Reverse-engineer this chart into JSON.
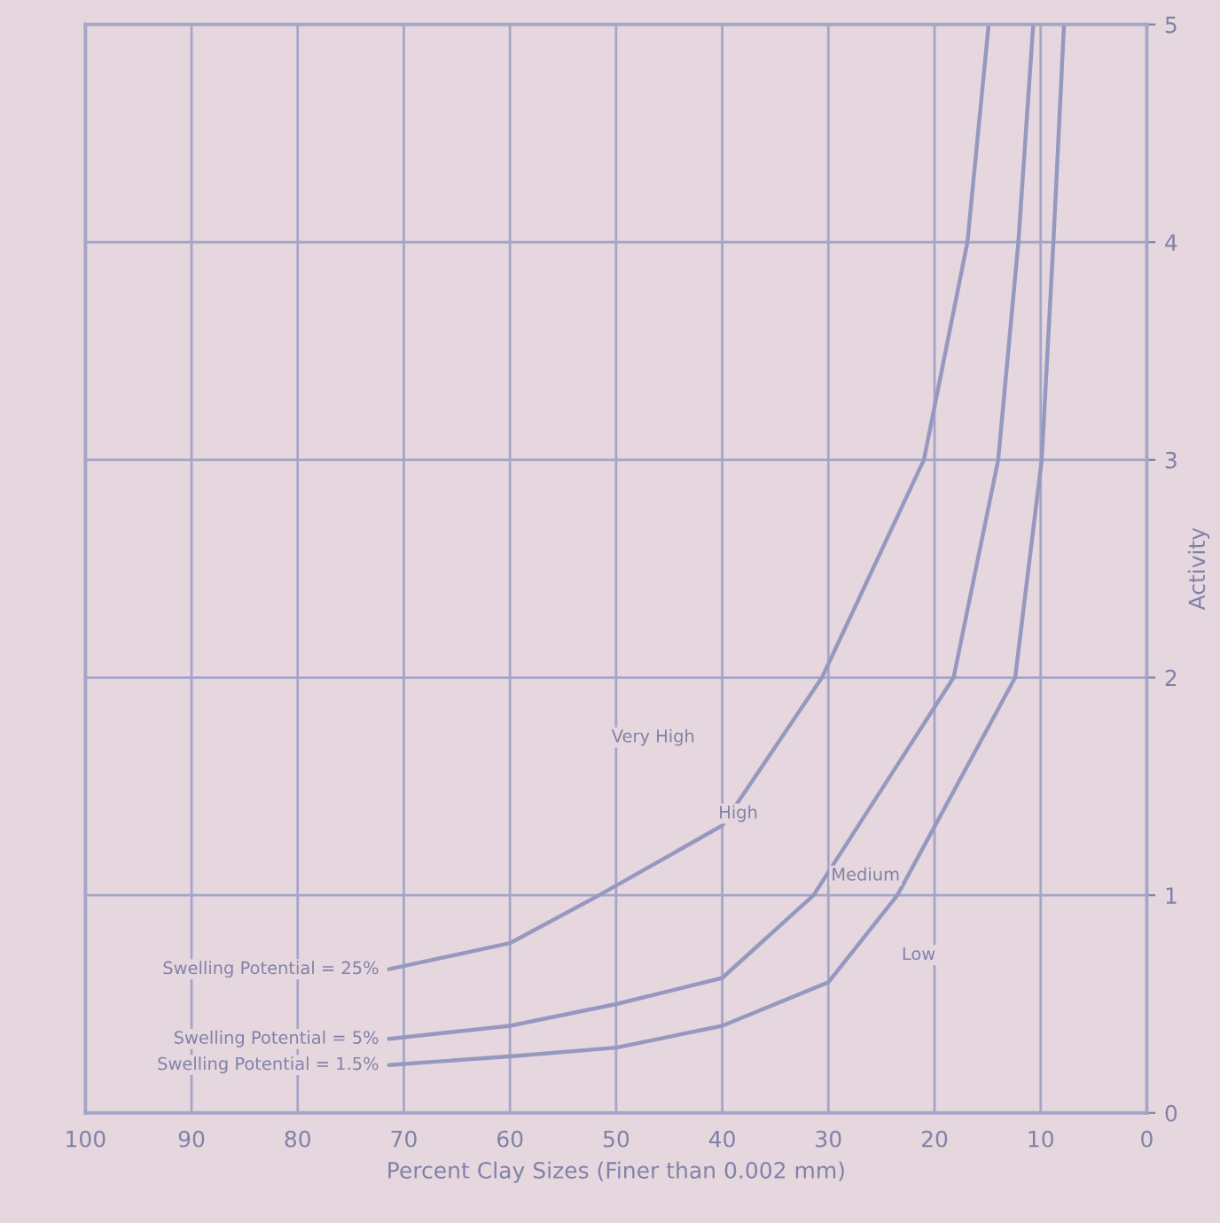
{
  "chart_data": {
    "type": "line",
    "xlabel": "Percent Clay Sizes (Finer than 0.002 mm)",
    "ylabel": "Activity",
    "xlim": [
      100,
      0
    ],
    "xticks": [
      0,
      10,
      20,
      30,
      40,
      50,
      60,
      70,
      80,
      90,
      100
    ],
    "ylim": [
      0,
      5
    ],
    "yticks": [
      0,
      1,
      2,
      3,
      4,
      5
    ],
    "grid": true,
    "legend": false,
    "marker": "none",
    "line_style": "solid",
    "series": [
      {
        "name": "Swelling Potential = 25%",
        "color": "#9698c0",
        "x": [
          71.4,
          60,
          51.6,
          40,
          30.6,
          21,
          16.9,
          14.9
        ],
        "values": [
          0.66,
          0.78,
          1.0,
          1.32,
          2.0,
          3.0,
          4.0,
          5.0
        ]
      },
      {
        "name": "Swelling Potential = 5%",
        "color": "#9698c0",
        "x": [
          71.4,
          60,
          50,
          40,
          31.4,
          18.2,
          14,
          12.1,
          10.7
        ],
        "values": [
          0.34,
          0.4,
          0.5,
          0.62,
          1.0,
          2.0,
          3.0,
          4.0,
          5.0
        ]
      },
      {
        "name": "Swelling Potential = 1.5%",
        "color": "#9698c0",
        "x": [
          71.4,
          60,
          50,
          40,
          30,
          23.5,
          12.4,
          9.9,
          8.8,
          7.8
        ],
        "values": [
          0.22,
          0.26,
          0.3,
          0.4,
          0.6,
          1.0,
          2.0,
          3.0,
          4.0,
          5.0
        ]
      }
    ],
    "annotations": [
      "Very High",
      "High",
      "Medium",
      "Low"
    ]
  }
}
